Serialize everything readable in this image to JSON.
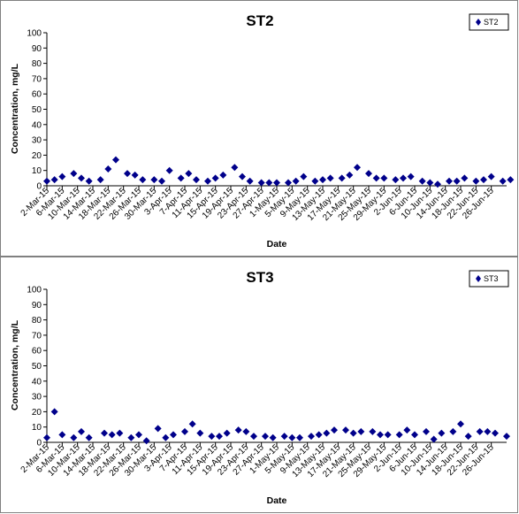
{
  "chart_data": [
    {
      "type": "scatter",
      "title": "ST2",
      "xlabel": "Date",
      "ylabel": "Concentration, mg/L",
      "ylim": [
        0,
        100
      ],
      "ytick_step": 10,
      "x_range": [
        "2015-03-02",
        "2015-06-30"
      ],
      "xticks": [
        "2-Mar-15",
        "6-Mar-15",
        "10-Mar-15",
        "14-Mar-15",
        "18-Mar-15",
        "22-Mar-15",
        "26-Mar-15",
        "30-Mar-15",
        "3-Apr-15",
        "7-Apr-15",
        "11-Apr-15",
        "15-Apr-15",
        "19-Apr-15",
        "23-Apr-15",
        "27-Apr-15",
        "1-May-15",
        "5-May-15",
        "9-May-15",
        "13-May-15",
        "17-May-15",
        "21-May-15",
        "25-May-15",
        "29-May-15",
        "2-Jun-15",
        "6-Jun-15",
        "10-Jun-15",
        "14-Jun-15",
        "18-Jun-15",
        "22-Jun-15",
        "26-Jun-15"
      ],
      "grid": false,
      "legend": "top-right",
      "marker_color": "#00008B",
      "series": [
        {
          "name": "ST2",
          "points": [
            {
              "x": "2015-03-02",
              "y": 3
            },
            {
              "x": "2015-03-04",
              "y": 4
            },
            {
              "x": "2015-03-06",
              "y": 6
            },
            {
              "x": "2015-03-09",
              "y": 8
            },
            {
              "x": "2015-03-11",
              "y": 5
            },
            {
              "x": "2015-03-13",
              "y": 3
            },
            {
              "x": "2015-03-16",
              "y": 4
            },
            {
              "x": "2015-03-18",
              "y": 11
            },
            {
              "x": "2015-03-20",
              "y": 17
            },
            {
              "x": "2015-03-23",
              "y": 8
            },
            {
              "x": "2015-03-25",
              "y": 7
            },
            {
              "x": "2015-03-27",
              "y": 4
            },
            {
              "x": "2015-03-30",
              "y": 4
            },
            {
              "x": "2015-04-01",
              "y": 3
            },
            {
              "x": "2015-04-03",
              "y": 10
            },
            {
              "x": "2015-04-06",
              "y": 5
            },
            {
              "x": "2015-04-08",
              "y": 8
            },
            {
              "x": "2015-04-10",
              "y": 4
            },
            {
              "x": "2015-04-13",
              "y": 3
            },
            {
              "x": "2015-04-15",
              "y": 5
            },
            {
              "x": "2015-04-17",
              "y": 7
            },
            {
              "x": "2015-04-20",
              "y": 12
            },
            {
              "x": "2015-04-22",
              "y": 6
            },
            {
              "x": "2015-04-24",
              "y": 3
            },
            {
              "x": "2015-04-27",
              "y": 2
            },
            {
              "x": "2015-04-29",
              "y": 2
            },
            {
              "x": "2015-05-01",
              "y": 2
            },
            {
              "x": "2015-05-04",
              "y": 2
            },
            {
              "x": "2015-05-06",
              "y": 3
            },
            {
              "x": "2015-05-08",
              "y": 6
            },
            {
              "x": "2015-05-11",
              "y": 3
            },
            {
              "x": "2015-05-13",
              "y": 4
            },
            {
              "x": "2015-05-15",
              "y": 5
            },
            {
              "x": "2015-05-18",
              "y": 5
            },
            {
              "x": "2015-05-20",
              "y": 7
            },
            {
              "x": "2015-05-22",
              "y": 12
            },
            {
              "x": "2015-05-25",
              "y": 8
            },
            {
              "x": "2015-05-27",
              "y": 5
            },
            {
              "x": "2015-05-29",
              "y": 5
            },
            {
              "x": "2015-06-01",
              "y": 4
            },
            {
              "x": "2015-06-03",
              "y": 5
            },
            {
              "x": "2015-06-05",
              "y": 6
            },
            {
              "x": "2015-06-08",
              "y": 3
            },
            {
              "x": "2015-06-10",
              "y": 2
            },
            {
              "x": "2015-06-12",
              "y": 1
            },
            {
              "x": "2015-06-15",
              "y": 3
            },
            {
              "x": "2015-06-17",
              "y": 3
            },
            {
              "x": "2015-06-19",
              "y": 5
            },
            {
              "x": "2015-06-22",
              "y": 3
            },
            {
              "x": "2015-06-24",
              "y": 4
            },
            {
              "x": "2015-06-26",
              "y": 6
            },
            {
              "x": "2015-06-29",
              "y": 3
            },
            {
              "x": "2015-07-01",
              "y": 4
            }
          ]
        }
      ]
    },
    {
      "type": "scatter",
      "title": "ST3",
      "xlabel": "Date",
      "ylabel": "Concentration, mg/L",
      "ylim": [
        0,
        100
      ],
      "ytick_step": 10,
      "x_range": [
        "2015-03-02",
        "2015-06-30"
      ],
      "xticks": [
        "2-Mar-15",
        "6-Mar-15",
        "10-Mar-15",
        "14-Mar-15",
        "18-Mar-15",
        "22-Mar-15",
        "26-Mar-15",
        "30-Mar-15",
        "3-Apr-15",
        "7-Apr-15",
        "11-Apr-15",
        "15-Apr-15",
        "19-Apr-15",
        "23-Apr-15",
        "27-Apr-15",
        "1-May-15",
        "5-May-15",
        "9-May-15",
        "13-May-15",
        "17-May-15",
        "21-May-15",
        "25-May-15",
        "29-May-15",
        "2-Jun-15",
        "6-Jun-15",
        "10-Jun-15",
        "14-Jun-15",
        "18-Jun-15",
        "22-Jun-15",
        "26-Jun-15"
      ],
      "grid": false,
      "legend": "top-right",
      "marker_color": "#00008B",
      "series": [
        {
          "name": "ST3",
          "points": [
            {
              "x": "2015-03-02",
              "y": 3
            },
            {
              "x": "2015-03-04",
              "y": 20
            },
            {
              "x": "2015-03-06",
              "y": 5
            },
            {
              "x": "2015-03-09",
              "y": 3
            },
            {
              "x": "2015-03-11",
              "y": 7
            },
            {
              "x": "2015-03-13",
              "y": 3
            },
            {
              "x": "2015-03-17",
              "y": 6
            },
            {
              "x": "2015-03-19",
              "y": 5
            },
            {
              "x": "2015-03-21",
              "y": 6
            },
            {
              "x": "2015-03-24",
              "y": 3
            },
            {
              "x": "2015-03-26",
              "y": 5
            },
            {
              "x": "2015-03-28",
              "y": 1
            },
            {
              "x": "2015-03-31",
              "y": 9
            },
            {
              "x": "2015-04-02",
              "y": 3
            },
            {
              "x": "2015-04-04",
              "y": 5
            },
            {
              "x": "2015-04-07",
              "y": 7
            },
            {
              "x": "2015-04-09",
              "y": 12
            },
            {
              "x": "2015-04-11",
              "y": 6
            },
            {
              "x": "2015-04-14",
              "y": 4
            },
            {
              "x": "2015-04-16",
              "y": 4
            },
            {
              "x": "2015-04-18",
              "y": 6
            },
            {
              "x": "2015-04-21",
              "y": 8
            },
            {
              "x": "2015-04-23",
              "y": 7
            },
            {
              "x": "2015-04-25",
              "y": 4
            },
            {
              "x": "2015-04-28",
              "y": 4
            },
            {
              "x": "2015-04-30",
              "y": 3
            },
            {
              "x": "2015-05-03",
              "y": 4
            },
            {
              "x": "2015-05-05",
              "y": 3
            },
            {
              "x": "2015-05-07",
              "y": 3
            },
            {
              "x": "2015-05-10",
              "y": 4
            },
            {
              "x": "2015-05-12",
              "y": 5
            },
            {
              "x": "2015-05-14",
              "y": 6
            },
            {
              "x": "2015-05-16",
              "y": 8
            },
            {
              "x": "2015-05-19",
              "y": 8
            },
            {
              "x": "2015-05-21",
              "y": 6
            },
            {
              "x": "2015-05-23",
              "y": 7
            },
            {
              "x": "2015-05-26",
              "y": 7
            },
            {
              "x": "2015-05-28",
              "y": 5
            },
            {
              "x": "2015-05-30",
              "y": 5
            },
            {
              "x": "2015-06-02",
              "y": 5
            },
            {
              "x": "2015-06-04",
              "y": 8
            },
            {
              "x": "2015-06-06",
              "y": 5
            },
            {
              "x": "2015-06-09",
              "y": 7
            },
            {
              "x": "2015-06-11",
              "y": 2
            },
            {
              "x": "2015-06-13",
              "y": 6
            },
            {
              "x": "2015-06-16",
              "y": 7
            },
            {
              "x": "2015-06-18",
              "y": 12
            },
            {
              "x": "2015-06-20",
              "y": 4
            },
            {
              "x": "2015-06-23",
              "y": 7
            },
            {
              "x": "2015-06-25",
              "y": 7
            },
            {
              "x": "2015-06-27",
              "y": 6
            },
            {
              "x": "2015-06-30",
              "y": 4
            }
          ]
        }
      ]
    }
  ]
}
